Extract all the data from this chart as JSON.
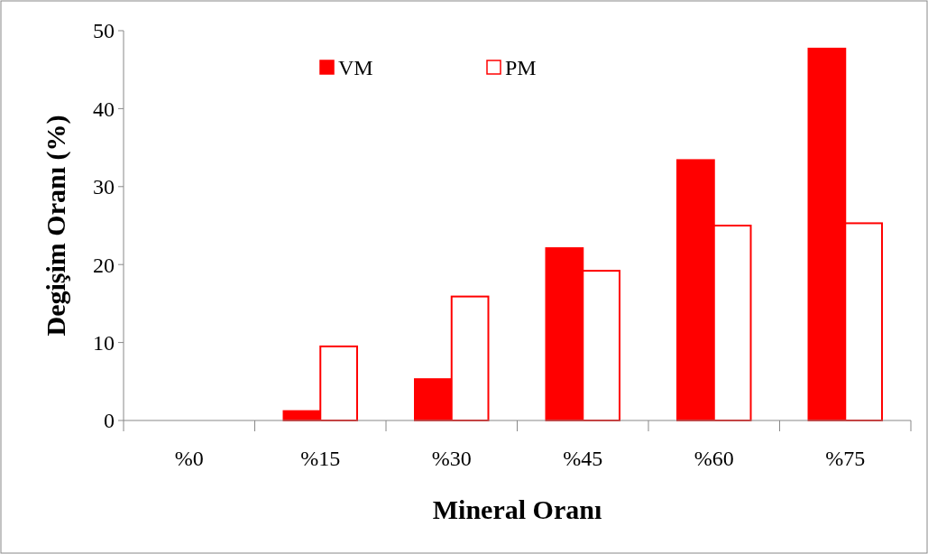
{
  "chart_data": {
    "type": "bar",
    "xlabel": "Mineral Oranı",
    "ylabel": "Degişim Oranı (%)",
    "categories": [
      "%0",
      "%15",
      "%30",
      "%45",
      "%60",
      "%75"
    ],
    "series": [
      {
        "name": "VM",
        "color": "#ff0000",
        "values": [
          0,
          1.2,
          5.3,
          22.1,
          33.4,
          47.7
        ]
      },
      {
        "name": "PM",
        "color": "#ffffff",
        "values": [
          0,
          9.5,
          15.9,
          19.2,
          25.0,
          25.3
        ]
      }
    ],
    "ylim": [
      0,
      50
    ],
    "yticks": [
      0,
      10,
      20,
      30,
      40,
      50
    ],
    "grid": false,
    "legend": "top"
  }
}
